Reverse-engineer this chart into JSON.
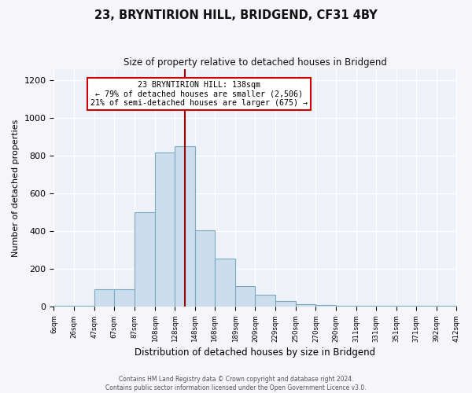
{
  "title": "23, BRYNTIRION HILL, BRIDGEND, CF31 4BY",
  "subtitle": "Size of property relative to detached houses in Bridgend",
  "xlabel": "Distribution of detached houses by size in Bridgend",
  "ylabel": "Number of detached properties",
  "footer_line1": "Contains HM Land Registry data © Crown copyright and database right 2024.",
  "footer_line2": "Contains public sector information licensed under the Open Government Licence v3.0.",
  "bin_labels": [
    "6sqm",
    "26sqm",
    "47sqm",
    "67sqm",
    "87sqm",
    "108sqm",
    "128sqm",
    "148sqm",
    "168sqm",
    "189sqm",
    "209sqm",
    "229sqm",
    "250sqm",
    "270sqm",
    "290sqm",
    "311sqm",
    "331sqm",
    "351sqm",
    "371sqm",
    "392sqm",
    "412sqm"
  ],
  "bar_heights": [
    5,
    5,
    95,
    95,
    500,
    820,
    850,
    405,
    255,
    110,
    65,
    30,
    15,
    10,
    5,
    5,
    5,
    5,
    5,
    5
  ],
  "bar_color": "#ccdded",
  "bar_edge_color": "#7baabf",
  "ylim": [
    0,
    1260
  ],
  "yticks": [
    0,
    200,
    400,
    600,
    800,
    1000,
    1200
  ],
  "vline_x": 138,
  "vline_color": "#990000",
  "annotation_title": "23 BRYNTIRION HILL: 138sqm",
  "annotation_line1": "← 79% of detached houses are smaller (2,506)",
  "annotation_line2": "21% of semi-detached houses are larger (675) →",
  "annotation_box_facecolor": "#ffffff",
  "annotation_box_edgecolor": "#cc0000",
  "bg_color": "#eef2f8",
  "fig_bg_color": "#f5f5fa",
  "bin_edges": [
    6,
    26,
    47,
    67,
    87,
    108,
    128,
    148,
    168,
    189,
    209,
    229,
    250,
    270,
    290,
    311,
    331,
    351,
    371,
    392,
    412
  ]
}
